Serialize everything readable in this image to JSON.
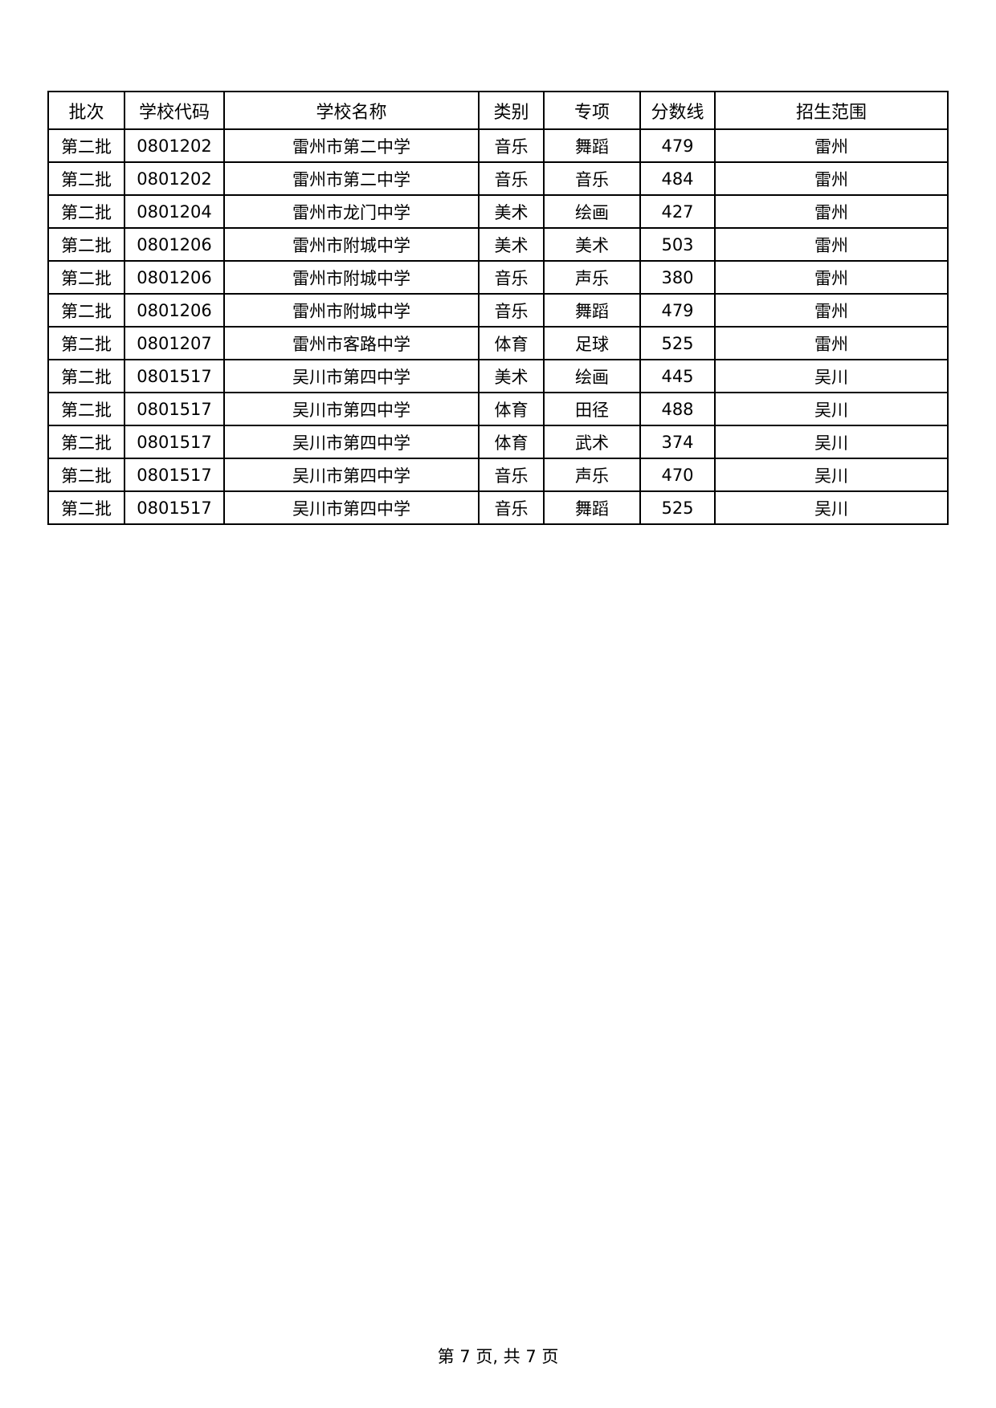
{
  "table": {
    "headers": [
      "批次",
      "学校代码",
      "学校名称",
      "类别",
      "专项",
      "分数线",
      "招生范围"
    ],
    "rows": [
      [
        "第二批",
        "0801202",
        "雷州市第二中学",
        "音乐",
        "舞蹈",
        "479",
        "雷州"
      ],
      [
        "第二批",
        "0801202",
        "雷州市第二中学",
        "音乐",
        "音乐",
        "484",
        "雷州"
      ],
      [
        "第二批",
        "0801204",
        "雷州市龙门中学",
        "美术",
        "绘画",
        "427",
        "雷州"
      ],
      [
        "第二批",
        "0801206",
        "雷州市附城中学",
        "美术",
        "美术",
        "503",
        "雷州"
      ],
      [
        "第二批",
        "0801206",
        "雷州市附城中学",
        "音乐",
        "声乐",
        "380",
        "雷州"
      ],
      [
        "第二批",
        "0801206",
        "雷州市附城中学",
        "音乐",
        "舞蹈",
        "479",
        "雷州"
      ],
      [
        "第二批",
        "0801207",
        "雷州市客路中学",
        "体育",
        "足球",
        "525",
        "雷州"
      ],
      [
        "第二批",
        "0801517",
        "吴川市第四中学",
        "美术",
        "绘画",
        "445",
        "吴川"
      ],
      [
        "第二批",
        "0801517",
        "吴川市第四中学",
        "体育",
        "田径",
        "488",
        "吴川"
      ],
      [
        "第二批",
        "0801517",
        "吴川市第四中学",
        "体育",
        "武术",
        "374",
        "吴川"
      ],
      [
        "第二批",
        "0801517",
        "吴川市第四中学",
        "音乐",
        "声乐",
        "470",
        "吴川"
      ],
      [
        "第二批",
        "0801517",
        "吴川市第四中学",
        "音乐",
        "舞蹈",
        "525",
        "吴川"
      ]
    ]
  },
  "footer": {
    "page_label": "第 7 页,  共 7 页"
  }
}
